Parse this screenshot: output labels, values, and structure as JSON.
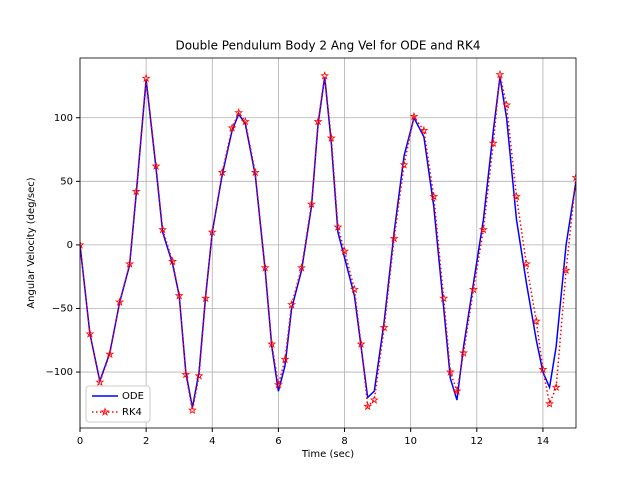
{
  "chart_data": {
    "type": "line",
    "title": "Double Pendulum Body 2 Ang Vel for ODE and RK4",
    "xlabel": "Time (sec)",
    "ylabel": "Angular Velocity (deg/sec)",
    "x": [
      0,
      0.3,
      0.6,
      0.9,
      1.2,
      1.5,
      1.7,
      2.0,
      2.3,
      2.5,
      2.8,
      3.0,
      3.2,
      3.4,
      3.6,
      3.8,
      4.0,
      4.3,
      4.6,
      4.8,
      5.0,
      5.3,
      5.6,
      5.8,
      6.0,
      6.2,
      6.4,
      6.7,
      7.0,
      7.2,
      7.4,
      7.6,
      7.8,
      8.0,
      8.3,
      8.5,
      8.7,
      8.9,
      9.2,
      9.5,
      9.8,
      10.1,
      10.4,
      10.7,
      11.0,
      11.2,
      11.4,
      11.6,
      11.9,
      12.2,
      12.5,
      12.7,
      12.9,
      13.2,
      13.5,
      13.8,
      14.0,
      14.2,
      14.4,
      14.7,
      15.0
    ],
    "series": [
      {
        "name": "ODE",
        "color": "#0000ff",
        "style": "solid",
        "values": [
          0,
          -70,
          -107,
          -85,
          -45,
          -16,
          40,
          130,
          60,
          10,
          -15,
          -40,
          -100,
          -128,
          -100,
          -40,
          10,
          55,
          90,
          103,
          95,
          55,
          -20,
          -80,
          -115,
          -95,
          -50,
          -20,
          30,
          95,
          132,
          80,
          10,
          -10,
          -40,
          -80,
          -120,
          -115,
          -60,
          10,
          70,
          100,
          85,
          30,
          -50,
          -105,
          -122,
          -80,
          -30,
          20,
          90,
          132,
          100,
          20,
          -30,
          -75,
          -100,
          -112,
          -80,
          0,
          50
        ]
      },
      {
        "name": "RK4",
        "color": "#ff0000",
        "style": "dotted",
        "values": [
          0,
          -70,
          -108,
          -86,
          -45,
          -15,
          42,
          131,
          62,
          12,
          -13,
          -40,
          -102,
          -130,
          -103,
          -42,
          10,
          57,
          92,
          104,
          97,
          57,
          -18,
          -78,
          -110,
          -90,
          -47,
          -18,
          32,
          97,
          133,
          84,
          14,
          -5,
          -35,
          -78,
          -127,
          -122,
          -65,
          5,
          63,
          101,
          90,
          38,
          -42,
          -100,
          -115,
          -85,
          -35,
          12,
          80,
          134,
          110,
          38,
          -15,
          -60,
          -98,
          -125,
          -112,
          -20,
          53
        ]
      }
    ],
    "xlim": [
      0,
      15
    ],
    "ylim": [
      -144,
      147
    ],
    "xticks": [
      0,
      2,
      4,
      6,
      8,
      10,
      12,
      14
    ],
    "yticks": [
      {
        "value": -100,
        "label": "−100"
      },
      {
        "value": -50,
        "label": "−50"
      },
      0,
      50,
      100
    ],
    "grid": true,
    "legend": "lower left"
  }
}
